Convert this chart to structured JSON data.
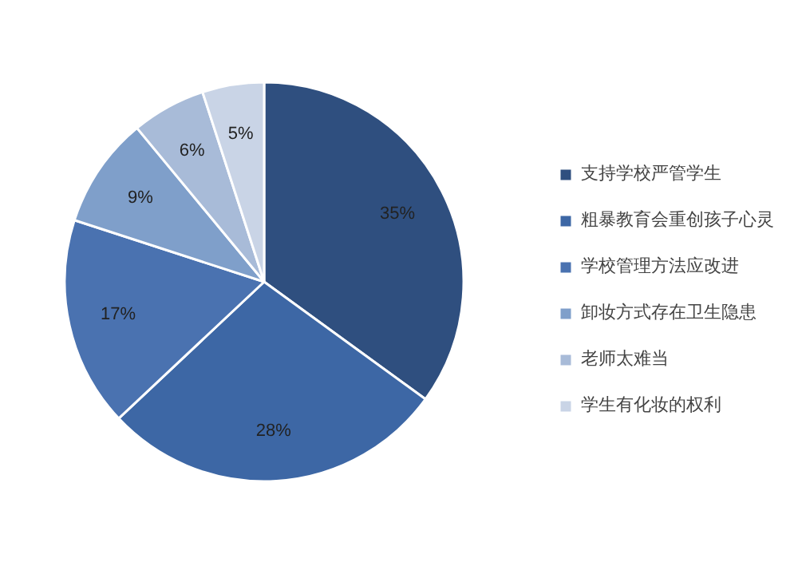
{
  "chart_data": {
    "type": "pie",
    "categories": [
      "支持学校严管学生",
      "粗暴教育会重创孩子心灵",
      "学校管理方法应改进",
      "卸妆方式存在卫生隐患",
      "老师太难当",
      "学生有化妆的权利"
    ],
    "values": [
      35,
      28,
      17,
      9,
      6,
      5
    ],
    "value_labels": [
      "35%",
      "28%",
      "17%",
      "9%",
      "6%",
      "5%"
    ],
    "colors": [
      "#2f4f7f",
      "#3d67a5",
      "#4a72b0",
      "#7f9fca",
      "#a8bbd8",
      "#c9d4e6"
    ],
    "legend": "right"
  }
}
